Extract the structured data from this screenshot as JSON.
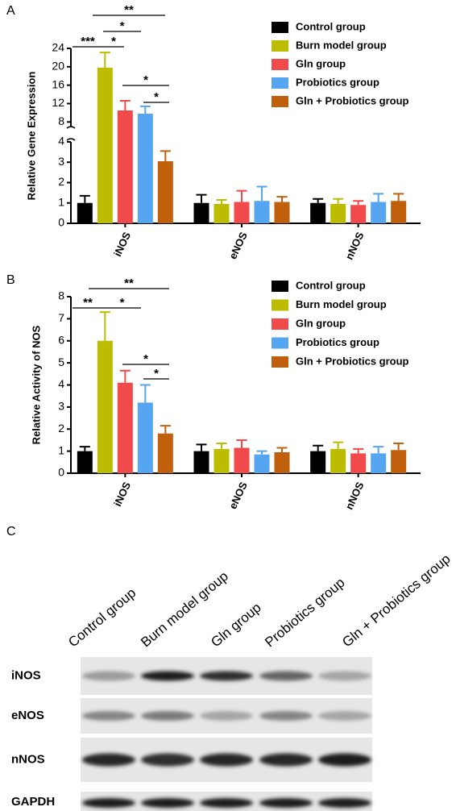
{
  "chart_data": [
    {
      "type": "bar",
      "label": "A",
      "y_label": "Relative Gene Expression",
      "categories": [
        "iNOS",
        "eNOS",
        "nNOS"
      ],
      "series": [
        {
          "name": "Control group",
          "color": "#000000",
          "values": [
            1.0,
            1.0,
            1.0
          ],
          "errors": [
            0.35,
            0.4,
            0.2
          ]
        },
        {
          "name": "Burn model group",
          "color": "#bcbc00",
          "values": [
            19.8,
            0.95,
            0.95
          ],
          "errors": [
            3.3,
            0.2,
            0.25
          ]
        },
        {
          "name": "Gln group",
          "color": "#f04a4a",
          "values": [
            10.5,
            1.05,
            0.9
          ],
          "errors": [
            2.1,
            0.55,
            0.2
          ]
        },
        {
          "name": "Probiotics group",
          "color": "#55a5f0",
          "values": [
            9.8,
            1.1,
            1.05
          ],
          "errors": [
            1.6,
            0.7,
            0.4
          ]
        },
        {
          "name": "Gln + Probiotics group",
          "color": "#c0600c",
          "values": [
            3.05,
            1.05,
            1.1
          ],
          "errors": [
            0.5,
            0.25,
            0.35
          ]
        }
      ],
      "ylim": [
        0,
        24
      ],
      "axis_break": [
        4,
        7
      ],
      "yticks": [
        0,
        1,
        2,
        3,
        4,
        8,
        12,
        16,
        20,
        24
      ],
      "annotations": [
        "**",
        "*",
        "***",
        "*",
        "*",
        "*"
      ]
    },
    {
      "type": "bar",
      "label": "B",
      "y_label": "Relative Activity of NOS",
      "categories": [
        "iNOS",
        "eNOS",
        "nNOS"
      ],
      "series": [
        {
          "name": "Control group",
          "color": "#000000",
          "values": [
            1.0,
            1.0,
            1.0
          ],
          "errors": [
            0.2,
            0.3,
            0.25
          ]
        },
        {
          "name": "Burn model group",
          "color": "#bcbc00",
          "values": [
            6.0,
            1.1,
            1.1
          ],
          "errors": [
            1.3,
            0.25,
            0.3
          ]
        },
        {
          "name": "Gln group",
          "color": "#f04a4a",
          "values": [
            4.1,
            1.15,
            0.9
          ],
          "errors": [
            0.55,
            0.35,
            0.2
          ]
        },
        {
          "name": "Probiotics group",
          "color": "#55a5f0",
          "values": [
            3.2,
            0.85,
            0.9
          ],
          "errors": [
            0.8,
            0.15,
            0.3
          ]
        },
        {
          "name": "Gln + Probiotics group",
          "color": "#c0600c",
          "values": [
            1.8,
            0.95,
            1.05
          ],
          "errors": [
            0.35,
            0.2,
            0.3
          ]
        }
      ],
      "ylim": [
        0,
        8
      ],
      "yticks": [
        0,
        1,
        2,
        3,
        4,
        5,
        6,
        7,
        8
      ],
      "annotations": [
        "**",
        "*",
        "**",
        "*",
        "*"
      ]
    }
  ],
  "blot": {
    "label": "C",
    "lanes": [
      "Control group",
      "Burn model group",
      "Gln group",
      "Probiotics group",
      "Gln + Probiotics group"
    ],
    "rows": [
      "iNOS",
      "eNOS",
      "nNOS",
      "GAPDH"
    ]
  }
}
